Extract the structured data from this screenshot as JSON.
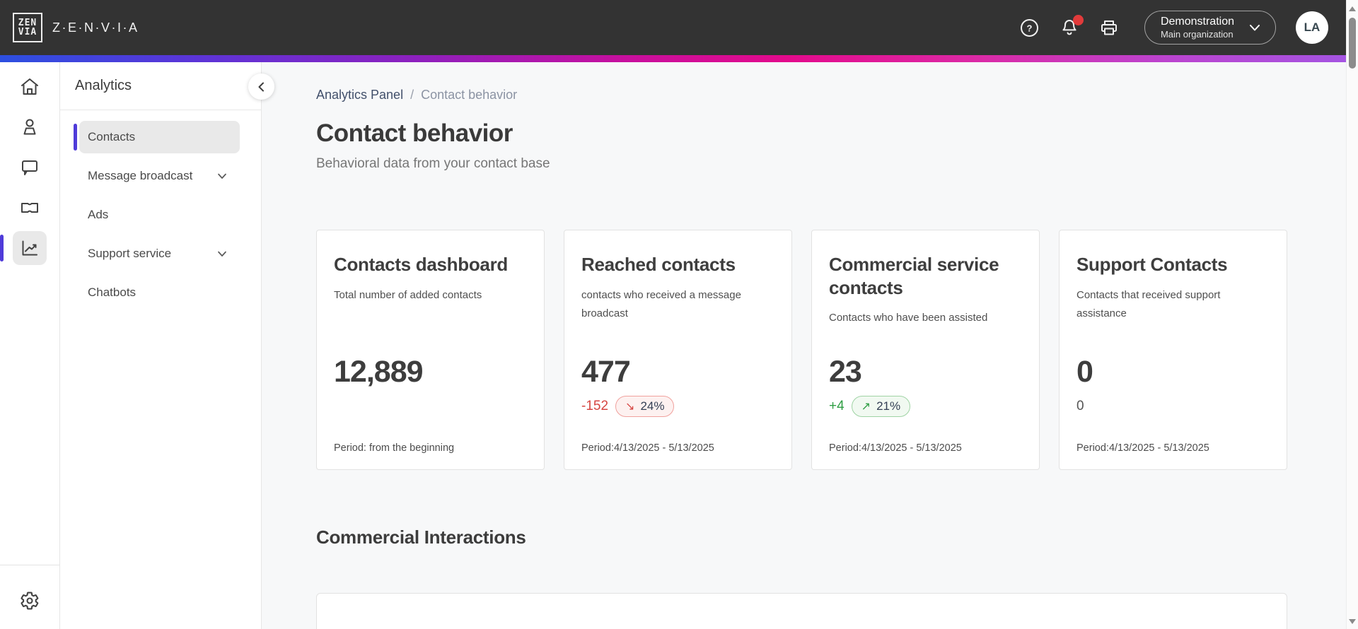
{
  "header": {
    "brand_mark_top": "ZEN",
    "brand_mark_bottom": "VIA",
    "wordmark": "Z·E·N·V·I·A",
    "icons": [
      "help-icon",
      "bell-icon",
      "printer-icon"
    ],
    "org": {
      "name": "Demonstration",
      "sub": "Main organization"
    },
    "avatar_initials": "LA"
  },
  "rail": {
    "items": [
      "home",
      "contacts",
      "conversations",
      "tickets",
      "analytics",
      "settings"
    ],
    "active": "analytics"
  },
  "nav": {
    "title": "Analytics",
    "items": [
      {
        "label": "Contacts",
        "active": true,
        "chevron": false
      },
      {
        "label": "Message broadcast",
        "active": false,
        "chevron": true
      },
      {
        "label": "Ads",
        "active": false,
        "chevron": false
      },
      {
        "label": "Support service",
        "active": false,
        "chevron": true
      },
      {
        "label": "Chatbots",
        "active": false,
        "chevron": false
      }
    ]
  },
  "breadcrumb": {
    "parent": "Analytics Panel",
    "separator": "/",
    "current": "Contact behavior"
  },
  "page": {
    "title": "Contact behavior",
    "subtitle": "Behavioral data from your contact base"
  },
  "cards": [
    {
      "title": "Contacts dashboard",
      "description": "Total number of added contacts",
      "value": "12,889",
      "period": "Period: from the beginning"
    },
    {
      "title": "Reached contacts",
      "description": "contacts who received a message broadcast",
      "value": "477",
      "delta": "-152",
      "delta_direction": "down",
      "badge": "24%",
      "period": "Period:4/13/2025 - 5/13/2025"
    },
    {
      "title": "Commercial service contacts",
      "description": "Contacts who have been assisted",
      "value": "23",
      "delta": "+4",
      "delta_direction": "up",
      "badge": "21%",
      "period": "Period:4/13/2025 - 5/13/2025"
    },
    {
      "title": "Support Contacts",
      "description": "Contacts that received support assistance",
      "value": "0",
      "delta": "0",
      "delta_direction": "none",
      "period": "Period:4/13/2025 - 5/13/2025"
    }
  ],
  "section": {
    "title": "Commercial Interactions"
  },
  "colors": {
    "header_bg": "#333333",
    "accent_purple": "#4f3bd9",
    "gradient_start": "#2c4fe0",
    "gradient_mid": "#e30a8c",
    "gradient_end": "#a355e3",
    "negative_red": "#d64541",
    "positive_green": "#2f9e44",
    "notification_red": "#e23b3b"
  }
}
